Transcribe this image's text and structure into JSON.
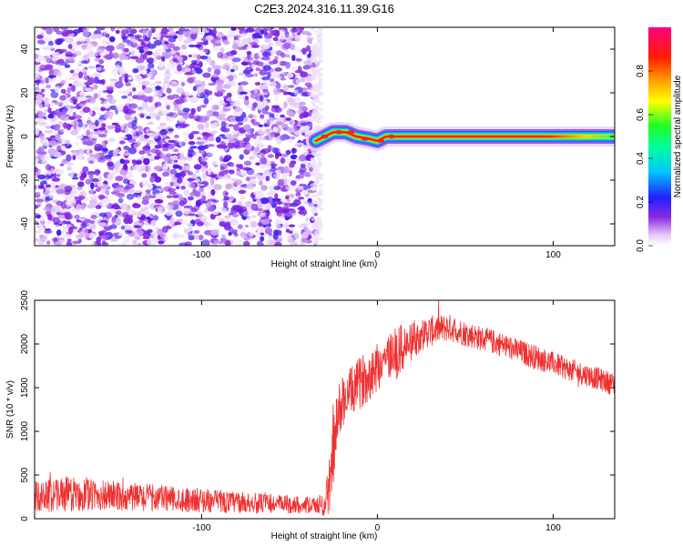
{
  "figure_title": "C2E3.2024.316.11.39.G16",
  "colors": {
    "snr_line": "#f03030",
    "axis": "#000000",
    "noise": "#7a2ee8"
  },
  "chart_data": [
    {
      "type": "heatmap",
      "xlabel": "Height of straight line (km)",
      "ylabel": "Frequency (Hz)",
      "xlim": [
        -195,
        135
      ],
      "ylim": [
        -50,
        50
      ],
      "x_ticks": [
        "-100",
        "0",
        "100"
      ],
      "x_tick_values": [
        -100,
        0,
        100
      ],
      "y_ticks": [
        "-40",
        "-20",
        "0",
        "20",
        "40"
      ],
      "y_tick_values": [
        -40,
        -20,
        0,
        20,
        40
      ],
      "colorbar": {
        "label": "Normalized spectral amplitude",
        "ticks": [
          "0.0",
          "0.2",
          "0.4",
          "0.6",
          "0.8"
        ],
        "tick_values": [
          0,
          0.2,
          0.4,
          0.6,
          0.8
        ],
        "range": [
          0,
          1
        ],
        "colormap": "rainbow (white-purple-blue-cyan-green-yellow-red-magenta)"
      },
      "noise_region_x": [
        -195,
        -35
      ],
      "signal_band": {
        "frequency_center_hz": 0,
        "x_range": [
          -35,
          135
        ],
        "trace": [
          {
            "x": -35,
            "y": -2
          },
          {
            "x": -30,
            "y": 0
          },
          {
            "x": -25,
            "y": 2
          },
          {
            "x": -18,
            "y": 2
          },
          {
            "x": -12,
            "y": 0
          },
          {
            "x": -5,
            "y": -1
          },
          {
            "x": 0,
            "y": -2
          },
          {
            "x": 5,
            "y": 0
          },
          {
            "x": 10,
            "y": 0
          },
          {
            "x": 135,
            "y": 0
          }
        ]
      }
    },
    {
      "type": "line",
      "xlabel": "Height of straight line (km)",
      "ylabel": "SNR (10 * v/v)",
      "xlim": [
        -195,
        135
      ],
      "ylim": [
        0,
        2500
      ],
      "x_ticks": [
        "-100",
        "0",
        "100"
      ],
      "x_tick_values": [
        -100,
        0,
        100
      ],
      "y_ticks": [
        "0",
        "500",
        "1000",
        "1500",
        "2000",
        "2500"
      ],
      "y_tick_values": [
        0,
        500,
        1000,
        1500,
        2000,
        2500
      ],
      "series": [
        {
          "x": [
            -195,
            -180,
            -165,
            -150,
            -135,
            -120,
            -105,
            -90,
            -75,
            -60,
            -45,
            -35,
            -30,
            -27,
            -25,
            -22,
            -20,
            -15,
            -10,
            -5,
            0,
            5,
            10,
            15,
            20,
            25,
            30,
            35,
            40,
            45,
            50,
            60,
            70,
            80,
            90,
            100,
            110,
            120,
            130,
            135
          ],
          "y": [
            250,
            280,
            270,
            260,
            245,
            235,
            215,
            195,
            180,
            170,
            160,
            150,
            170,
            400,
            800,
            1200,
            1350,
            1450,
            1550,
            1650,
            1750,
            1850,
            1880,
            1950,
            2030,
            2100,
            2150,
            2170,
            2190,
            2160,
            2120,
            2060,
            2000,
            1920,
            1850,
            1780,
            1700,
            1640,
            1570,
            1540
          ],
          "noise_amplitude": [
            180,
            200,
            190,
            170,
            160,
            150,
            140,
            130,
            120,
            110,
            100,
            90,
            150,
            350,
            400,
            350,
            300,
            280,
            300,
            300,
            300,
            280,
            300,
            300,
            200,
            180,
            180,
            160,
            160,
            150,
            150,
            140,
            140,
            140,
            140,
            130,
            130,
            130,
            130,
            130
          ]
        }
      ]
    }
  ]
}
